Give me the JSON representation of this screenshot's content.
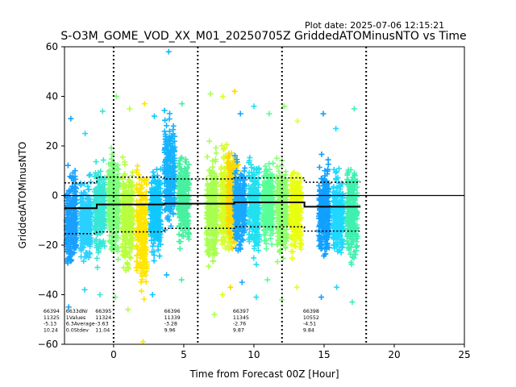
{
  "header": {
    "plot_date": "Plot date: 2025-07-06 12:15:21",
    "title": "S-O3M_GOME_VOD_XX_M01_20250705Z GriddedATOMinusNTO vs Time"
  },
  "chart_data": {
    "type": "scatter",
    "xlabel": "Time from Forecast 00Z [Hour]",
    "ylabel": "GriddedATOMinusNTO",
    "xlim": [
      -3.5,
      25
    ],
    "ylim": [
      -60,
      60
    ],
    "xticks": [
      0,
      5,
      10,
      15,
      20,
      25
    ],
    "yticks": [
      -60,
      -40,
      -20,
      0,
      20,
      40,
      60
    ],
    "xtick_labels": [
      "0",
      "5",
      "10",
      "15",
      "20",
      "25"
    ],
    "ytick_labels": [
      "−60",
      "−40",
      "−20",
      "0",
      "20",
      "40",
      "60"
    ],
    "vertical_lines_dotted": [
      0,
      6,
      12,
      18
    ],
    "zero_line": 0,
    "marker": "+",
    "colormap": "jet",
    "clusters": [
      {
        "x": -3.0,
        "ymin": -45,
        "ymax": 31,
        "color": "#19a0ff"
      },
      {
        "x": -2.0,
        "ymin": -38,
        "ymax": 25,
        "color": "#2bd0ff"
      },
      {
        "x": -1.0,
        "ymin": -40,
        "ymax": 34,
        "color": "#39e6d8"
      },
      {
        "x": 0.0,
        "ymin": -41,
        "ymax": 40,
        "color": "#7cff7a"
      },
      {
        "x": 1.0,
        "ymin": -46,
        "ymax": 35,
        "color": "#b8ff40"
      },
      {
        "x": 2.0,
        "ymin": -59,
        "ymax": 37,
        "color": "#ffe500"
      },
      {
        "x": 3.0,
        "ymin": -40,
        "ymax": 32,
        "color": "#10c8ff"
      },
      {
        "x": 4.0,
        "ymin": -32,
        "ymax": 58,
        "color": "#16b4ff"
      },
      {
        "x": 5.0,
        "ymin": -34,
        "ymax": 37,
        "color": "#48f0a0"
      },
      {
        "x": 7.0,
        "ymin": -48,
        "ymax": 41,
        "color": "#a8ff50"
      },
      {
        "x": 8.0,
        "ymin": -40,
        "ymax": 40,
        "color": "#d4ff28"
      },
      {
        "x": 8.5,
        "ymin": -37,
        "ymax": 42,
        "color": "#ffd800"
      },
      {
        "x": 9.0,
        "ymin": -35,
        "ymax": 33,
        "color": "#1aa8ff"
      },
      {
        "x": 10.0,
        "ymin": -41,
        "ymax": 36,
        "color": "#22e0f0"
      },
      {
        "x": 11.0,
        "ymin": -34,
        "ymax": 33,
        "color": "#58ff98"
      },
      {
        "x": 12.0,
        "ymin": -42,
        "ymax": 36,
        "color": "#8cff6c"
      },
      {
        "x": 13.0,
        "ymin": -37,
        "ymax": 30,
        "color": "#e8ff10"
      },
      {
        "x": 15.0,
        "ymin": -41,
        "ymax": 33,
        "color": "#10a0ff"
      },
      {
        "x": 16.0,
        "ymin": -37,
        "ymax": 27,
        "color": "#20d8ff"
      },
      {
        "x": 17.0,
        "ymin": -43,
        "ymax": 35,
        "color": "#40f0b0"
      }
    ],
    "mean_line": [
      {
        "x0": -3.5,
        "x1": -1.2,
        "y": -5.13
      },
      {
        "x0": -1.2,
        "x1": 3.6,
        "y": -3.63
      },
      {
        "x0": 3.6,
        "x1": 8.6,
        "y": -3.28
      },
      {
        "x0": 8.6,
        "x1": 13.6,
        "y": -2.76
      },
      {
        "x0": 13.6,
        "x1": 17.6,
        "y": -4.51
      }
    ],
    "stddev_band": [
      {
        "x0": -3.5,
        "x1": -1.2,
        "lo": -15.37,
        "hi": 5.11
      },
      {
        "x0": -1.2,
        "x1": 3.6,
        "lo": -14.67,
        "hi": 7.41
      },
      {
        "x0": 3.6,
        "x1": 8.6,
        "lo": -13.24,
        "hi": 6.68
      },
      {
        "x0": 8.6,
        "x1": 13.6,
        "lo": -12.63,
        "hi": 7.11
      },
      {
        "x0": 13.6,
        "x1": 17.6,
        "lo": -14.35,
        "hi": 5.33
      }
    ],
    "stats_blocks": [
      {
        "x": -5.0,
        "lines": [
          "66394",
          "11325",
          "-5.13",
          "10.24"
        ]
      },
      {
        "x": -3.4,
        "lines": [
          "6633dNr",
          "1Values",
          "6.3Average",
          "0.0Stdev"
        ]
      },
      {
        "x": -1.3,
        "lines": [
          "66395",
          "11324",
          "-3.63",
          "11.04"
        ]
      },
      {
        "x": 3.6,
        "lines": [
          "66396",
          "11339",
          "-3.28",
          "9.96"
        ]
      },
      {
        "x": 8.5,
        "lines": [
          "66397",
          "11345",
          "-2.76",
          "9.87"
        ]
      },
      {
        "x": 13.5,
        "lines": [
          "66398",
          "10552",
          "-4.51",
          "9.84"
        ]
      }
    ]
  }
}
